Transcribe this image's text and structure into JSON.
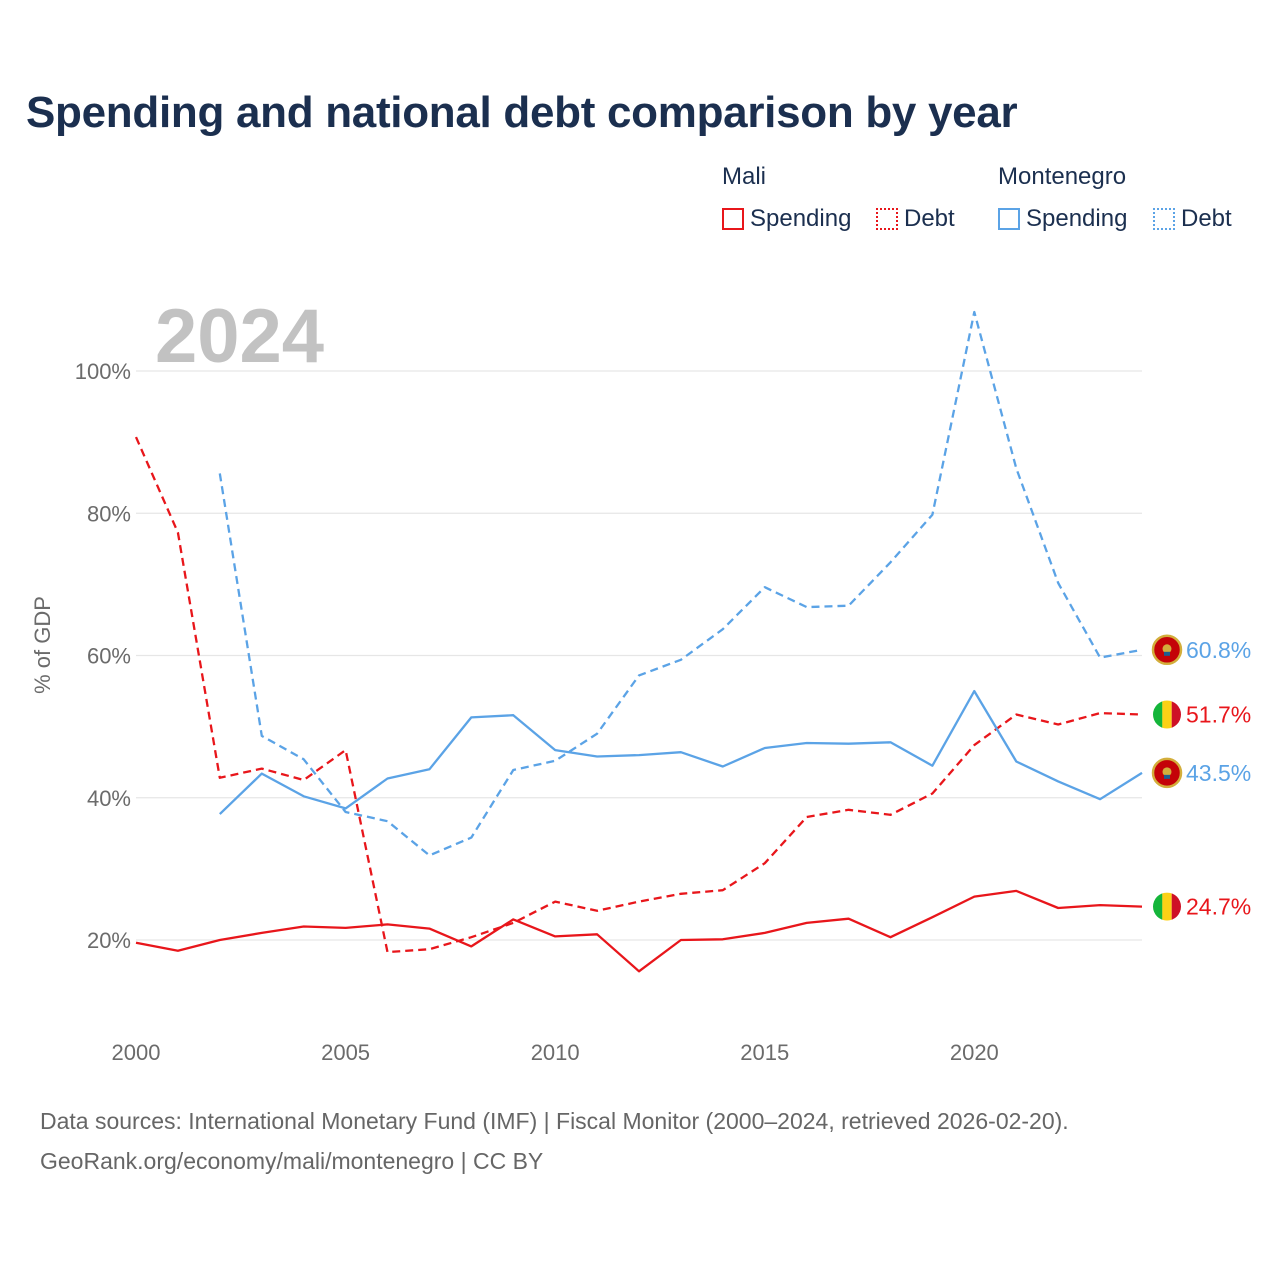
{
  "title": "Spending and national debt comparison by year",
  "legend": {
    "groups": [
      {
        "country": "Mali",
        "color": "#e8161b",
        "items": [
          "Spending",
          "Debt"
        ]
      },
      {
        "country": "Montenegro",
        "color": "#5ba3e6",
        "items": [
          "Spending",
          "Debt"
        ]
      }
    ]
  },
  "year_watermark": "2024",
  "footer": {
    "line1": "Data sources: International Monetary Fund (IMF) | Fiscal Monitor (2000–2024, retrieved 2026-02-20).",
    "line2": "GeoRank.org/economy/mali/montenegro | CC BY"
  },
  "chart_data": {
    "type": "line",
    "title": "Spending and national debt comparison by year",
    "xlabel": "",
    "ylabel": "% of GDP",
    "xlim": [
      2000,
      2024
    ],
    "ylim": [
      10,
      110
    ],
    "xticks": [
      2000,
      2005,
      2010,
      2015,
      2020
    ],
    "xtick_labels": [
      "2000",
      "2005",
      "2010",
      "2015",
      "2020"
    ],
    "yticks": [
      20,
      40,
      60,
      80,
      100
    ],
    "ytick_labels": [
      "20%",
      "40%",
      "60%",
      "80%",
      "100%"
    ],
    "grid": true,
    "series": [
      {
        "name": "Mali Spending",
        "country": "Mali",
        "metric": "Spending",
        "color": "#e8161b",
        "dash": "solid",
        "end_label": "24.7%",
        "x": [
          2000,
          2001,
          2002,
          2003,
          2004,
          2005,
          2006,
          2007,
          2008,
          2009,
          2010,
          2011,
          2012,
          2013,
          2014,
          2015,
          2016,
          2017,
          2018,
          2019,
          2020,
          2021,
          2022,
          2023,
          2024
        ],
        "values": [
          19.6,
          18.5,
          20.0,
          21.0,
          21.9,
          21.7,
          22.2,
          21.6,
          19.1,
          22.9,
          20.5,
          20.8,
          15.6,
          20.0,
          20.1,
          21.0,
          22.4,
          23.0,
          20.4,
          23.2,
          26.1,
          26.9,
          24.5,
          24.9,
          24.7
        ]
      },
      {
        "name": "Mali Debt",
        "country": "Mali",
        "metric": "Debt",
        "color": "#e8161b",
        "dash": "dashed",
        "end_label": "51.7%",
        "x": [
          2000,
          2001,
          2002,
          2003,
          2004,
          2005,
          2006,
          2007,
          2008,
          2009,
          2010,
          2011,
          2012,
          2013,
          2014,
          2015,
          2016,
          2017,
          2018,
          2019,
          2020,
          2021,
          2022,
          2023,
          2024
        ],
        "values": [
          90.7,
          77.3,
          42.8,
          44.1,
          42.5,
          46.7,
          18.3,
          18.7,
          20.4,
          22.4,
          25.4,
          24.1,
          25.4,
          26.5,
          27.0,
          30.8,
          37.3,
          38.3,
          37.6,
          40.6,
          47.4,
          51.7,
          50.3,
          51.9,
          51.7
        ]
      },
      {
        "name": "Montenegro Spending",
        "country": "Montenegro",
        "metric": "Spending",
        "color": "#5ba3e6",
        "dash": "solid",
        "end_label": "43.5%",
        "x": [
          2002,
          2003,
          2004,
          2005,
          2006,
          2007,
          2008,
          2009,
          2010,
          2011,
          2012,
          2013,
          2014,
          2015,
          2016,
          2017,
          2018,
          2019,
          2020,
          2021,
          2022,
          2023,
          2024
        ],
        "values": [
          37.7,
          43.4,
          40.2,
          38.5,
          42.7,
          44.0,
          51.3,
          51.6,
          46.7,
          45.8,
          46.0,
          46.4,
          44.4,
          47.0,
          47.7,
          47.6,
          47.8,
          44.5,
          55.0,
          45.1,
          42.3,
          39.8,
          43.5
        ]
      },
      {
        "name": "Montenegro Debt",
        "country": "Montenegro",
        "metric": "Debt",
        "color": "#5ba3e6",
        "dash": "dashed",
        "end_label": "60.8%",
        "x": [
          2002,
          2003,
          2004,
          2005,
          2006,
          2007,
          2008,
          2009,
          2010,
          2011,
          2012,
          2013,
          2014,
          2015,
          2016,
          2017,
          2018,
          2019,
          2020,
          2021,
          2022,
          2023,
          2024
        ],
        "values": [
          85.6,
          48.7,
          45.4,
          38.0,
          36.7,
          31.9,
          34.4,
          43.9,
          45.2,
          49.0,
          57.2,
          59.4,
          63.7,
          69.6,
          66.8,
          67.0,
          73.1,
          79.8,
          108.3,
          86.3,
          70.2,
          59.7,
          60.8
        ]
      }
    ]
  }
}
